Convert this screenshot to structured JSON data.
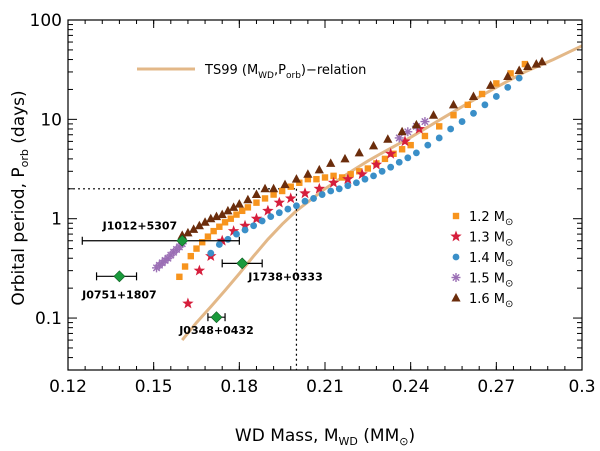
{
  "chart_data": {
    "type": "scatter",
    "x_scale": "linear",
    "y_scale": "log",
    "xlim": [
      0.12,
      0.3
    ],
    "ylim": [
      0.03,
      100
    ],
    "xlabel": {
      "main": "WD Mass, M",
      "sub": "WD",
      "unit_open": " (M",
      "unit_close": ")"
    },
    "ylabel": {
      "main": "Orbital period, P",
      "sub": "orb",
      "unit": " (days)"
    },
    "x_ticks": [
      0.12,
      0.15,
      0.18,
      0.21,
      0.24,
      0.27,
      0.3
    ],
    "x_tick_labels": [
      "0.12",
      "0.15",
      "0.18",
      "0.21",
      "0.24",
      "0.27",
      "0.3"
    ],
    "y_ticks": [
      0.1,
      1,
      10,
      100
    ],
    "y_tick_labels": [
      "0.1",
      "1",
      "10",
      "100"
    ],
    "curve_legend": {
      "prefix": "TS99 (M",
      "sub1": "WD",
      "mid": ",P",
      "sub2": "orb",
      "suffix": ")−relation",
      "color": "#e3b888"
    },
    "relation_curve": {
      "x": [
        0.16,
        0.165,
        0.17,
        0.175,
        0.18,
        0.185,
        0.19,
        0.195,
        0.2,
        0.205,
        0.21,
        0.215,
        0.22,
        0.225,
        0.23,
        0.24,
        0.25,
        0.26,
        0.27,
        0.28,
        0.29,
        0.3
      ],
      "y": [
        0.06,
        0.09,
        0.13,
        0.19,
        0.28,
        0.42,
        0.62,
        0.88,
        1.2,
        1.55,
        2.0,
        2.5,
        3.1,
        3.8,
        4.6,
        6.6,
        9.8,
        14.5,
        21,
        30,
        40,
        55
      ]
    },
    "reference_lines": {
      "x": 0.2,
      "y": 2.0
    },
    "series": [
      {
        "name": "1.2",
        "symbol": "square",
        "color": "#f7941d",
        "x": [
          0.159,
          0.161,
          0.163,
          0.165,
          0.167,
          0.169,
          0.171,
          0.173,
          0.175,
          0.177,
          0.179,
          0.181,
          0.183,
          0.186,
          0.189,
          0.192,
          0.195,
          0.198,
          0.201,
          0.204,
          0.207,
          0.21,
          0.213,
          0.216,
          0.219,
          0.222,
          0.225,
          0.228,
          0.231,
          0.234,
          0.237,
          0.24,
          0.245,
          0.25,
          0.255,
          0.26,
          0.265,
          0.27,
          0.275,
          0.28
        ],
        "y": [
          0.26,
          0.33,
          0.42,
          0.5,
          0.58,
          0.66,
          0.75,
          0.83,
          0.92,
          1.0,
          1.1,
          1.2,
          1.3,
          1.45,
          1.6,
          1.75,
          1.9,
          2.1,
          2.3,
          2.5,
          2.5,
          2.6,
          2.7,
          2.6,
          2.8,
          3.0,
          3.2,
          3.6,
          4.0,
          4.5,
          5.0,
          5.5,
          6.8,
          8.5,
          11,
          14,
          18,
          23,
          29,
          36
        ]
      },
      {
        "name": "1.3",
        "symbol": "star",
        "color": "#d61e3c",
        "x": [
          0.162,
          0.166,
          0.17,
          0.174,
          0.178,
          0.182,
          0.186,
          0.19,
          0.194,
          0.198,
          0.203,
          0.208,
          0.213,
          0.218,
          0.223,
          0.228,
          0.233,
          0.238,
          0.243
        ],
        "y": [
          0.14,
          0.3,
          0.42,
          0.6,
          0.75,
          0.85,
          1.0,
          1.2,
          1.45,
          1.6,
          1.8,
          2.0,
          2.3,
          2.5,
          2.8,
          3.5,
          4.5,
          6.0,
          8.0
        ]
      },
      {
        "name": "1.4",
        "symbol": "circle",
        "color": "#3a8fc8",
        "x": [
          0.17,
          0.173,
          0.176,
          0.179,
          0.182,
          0.185,
          0.188,
          0.191,
          0.194,
          0.197,
          0.2,
          0.203,
          0.206,
          0.209,
          0.212,
          0.215,
          0.218,
          0.221,
          0.224,
          0.227,
          0.23,
          0.233,
          0.236,
          0.239,
          0.242,
          0.246,
          0.25,
          0.254,
          0.258,
          0.262,
          0.266,
          0.27,
          0.274,
          0.278
        ],
        "y": [
          0.45,
          0.55,
          0.62,
          0.7,
          0.77,
          0.85,
          0.95,
          1.05,
          1.15,
          1.25,
          1.35,
          1.5,
          1.6,
          1.75,
          1.9,
          2.0,
          2.15,
          2.3,
          2.5,
          2.7,
          3.0,
          3.3,
          3.7,
          4.1,
          4.6,
          5.5,
          6.5,
          8.0,
          9.5,
          11.5,
          14,
          17,
          21,
          26
        ]
      },
      {
        "name": "1.5",
        "symbol": "asterisk",
        "color": "#9b6fb5",
        "x": [
          0.151,
          0.152,
          0.153,
          0.154,
          0.155,
          0.156,
          0.157,
          0.158,
          0.159,
          0.16,
          0.236,
          0.239,
          0.242,
          0.245
        ],
        "y": [
          0.32,
          0.34,
          0.36,
          0.38,
          0.4,
          0.43,
          0.46,
          0.49,
          0.52,
          0.56,
          6.5,
          7.5,
          8.5,
          9.5
        ]
      },
      {
        "name": "1.6",
        "symbol": "triangle",
        "color": "#6b2d0c",
        "x": [
          0.16,
          0.162,
          0.164,
          0.166,
          0.168,
          0.17,
          0.172,
          0.174,
          0.176,
          0.178,
          0.18,
          0.183,
          0.186,
          0.189,
          0.192,
          0.196,
          0.2,
          0.204,
          0.208,
          0.212,
          0.217,
          0.222,
          0.227,
          0.232,
          0.237,
          0.242,
          0.248,
          0.255,
          0.262,
          0.268,
          0.274,
          0.278,
          0.281,
          0.284,
          0.286
        ],
        "y": [
          0.68,
          0.72,
          0.78,
          0.85,
          0.92,
          1.0,
          1.05,
          1.1,
          1.2,
          1.3,
          1.4,
          1.55,
          1.75,
          2.0,
          2.0,
          2.2,
          2.5,
          2.8,
          3.1,
          3.6,
          4.0,
          4.6,
          5.4,
          6.3,
          7.5,
          8.8,
          11,
          14,
          17,
          22,
          27,
          31,
          34,
          36,
          38
        ]
      }
    ],
    "legend": {
      "position": "middle-right",
      "unit_glyph": "M",
      "entries": [
        {
          "series": "1.2",
          "label": "1.2"
        },
        {
          "series": "1.3",
          "label": "1.3"
        },
        {
          "series": "1.4",
          "label": "1.4"
        },
        {
          "series": "1.5",
          "label": "1.5"
        },
        {
          "series": "1.6",
          "label": "1.6"
        }
      ]
    },
    "observed": {
      "color": "#1a9a3c",
      "points": [
        {
          "name": "J1012+5307",
          "x": 0.16,
          "y": 0.6,
          "xerr_lo": 0.035,
          "xerr_hi": 0.02
        },
        {
          "name": "J0751+1807",
          "x": 0.138,
          "y": 0.263,
          "xerr_lo": 0.008,
          "xerr_hi": 0.006
        },
        {
          "name": "J1738+0333",
          "x": 0.181,
          "y": 0.355,
          "xerr_lo": 0.007,
          "xerr_hi": 0.007
        },
        {
          "name": "J0348+0432",
          "x": 0.172,
          "y": 0.102,
          "xerr_lo": 0.003,
          "xerr_hi": 0.003
        }
      ]
    }
  }
}
